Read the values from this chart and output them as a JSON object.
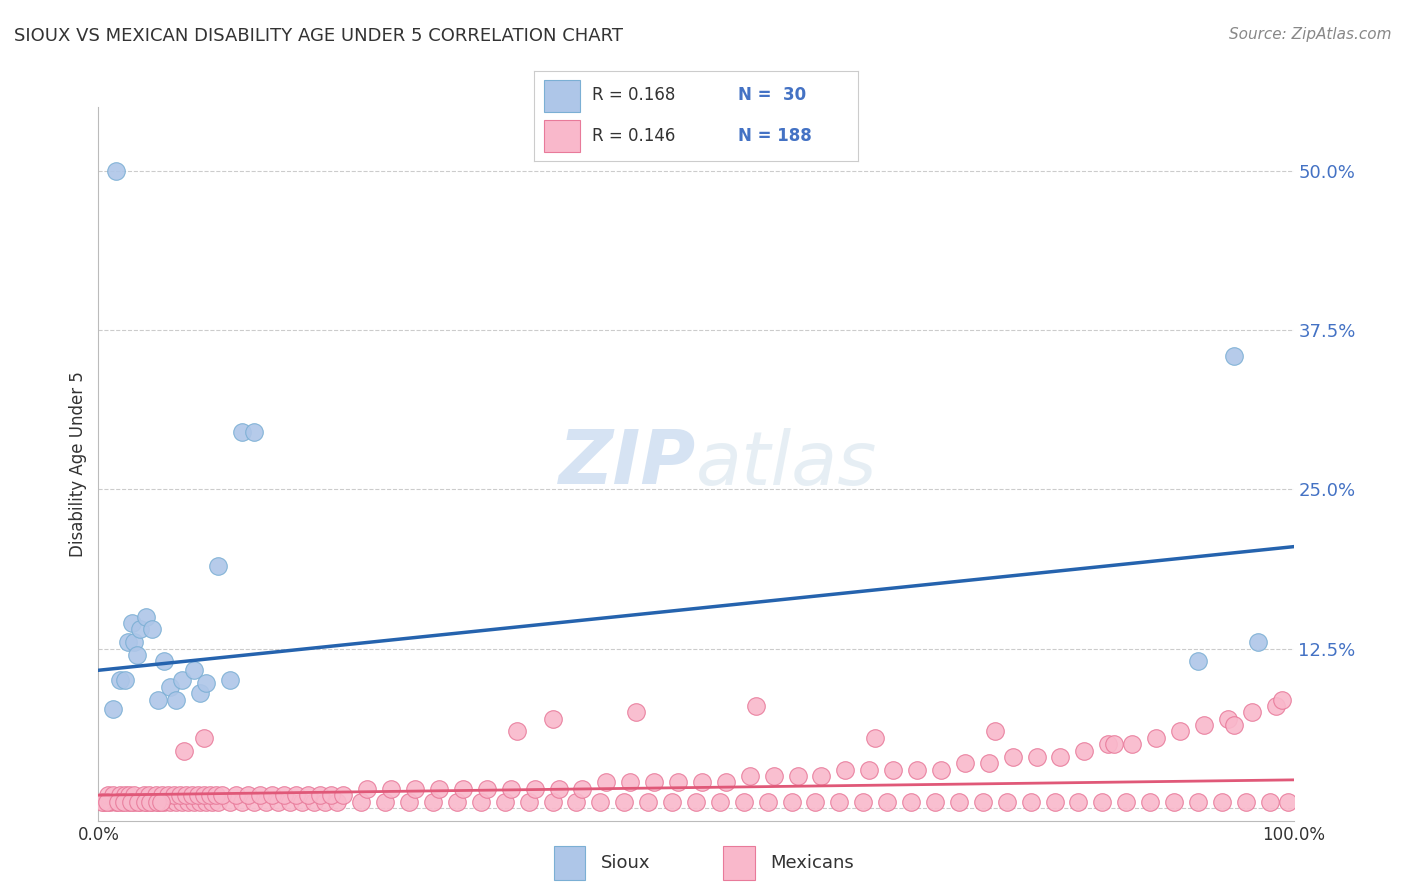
{
  "title": "SIOUX VS MEXICAN DISABILITY AGE UNDER 5 CORRELATION CHART",
  "source": "Source: ZipAtlas.com",
  "ylabel": "Disability Age Under 5",
  "sioux_color": "#aec6e8",
  "sioux_edge_color": "#7bafd4",
  "mexican_color": "#f9b8cb",
  "mexican_edge_color": "#e87a9a",
  "sioux_line_color": "#2563ae",
  "mexican_line_color": "#e05878",
  "ytick_color": "#4472c4",
  "title_color": "#333333",
  "watermark_color": "#dce8f0",
  "xlim": [
    0.0,
    1.0
  ],
  "ylim": [
    -0.01,
    0.55
  ],
  "yticks": [
    0.0,
    0.125,
    0.25,
    0.375,
    0.5
  ],
  "ytick_labels": [
    "",
    "12.5%",
    "25.0%",
    "37.5%",
    "50.0%"
  ],
  "sioux_line_x0": 0.0,
  "sioux_line_x1": 1.0,
  "sioux_line_y0": 0.108,
  "sioux_line_y1": 0.205,
  "mexican_line_x0": 0.0,
  "mexican_line_x1": 1.0,
  "mexican_line_y0": 0.01,
  "mexican_line_y1": 0.022,
  "sioux_scatter_x": [
    0.012,
    0.018,
    0.022,
    0.025,
    0.028,
    0.03,
    0.032,
    0.035,
    0.04,
    0.045,
    0.05,
    0.055,
    0.06,
    0.065,
    0.07,
    0.08,
    0.085,
    0.09,
    0.1,
    0.11,
    0.12,
    0.13,
    0.015,
    0.95,
    0.92,
    0.97
  ],
  "sioux_scatter_y": [
    0.078,
    0.1,
    0.1,
    0.13,
    0.145,
    0.13,
    0.12,
    0.14,
    0.15,
    0.14,
    0.085,
    0.115,
    0.095,
    0.085,
    0.1,
    0.108,
    0.09,
    0.098,
    0.19,
    0.1,
    0.295,
    0.295,
    0.5,
    0.355,
    0.115,
    0.13
  ],
  "mexican_scatter_x": [
    0.005,
    0.01,
    0.015,
    0.02,
    0.025,
    0.03,
    0.035,
    0.04,
    0.045,
    0.05,
    0.055,
    0.06,
    0.065,
    0.07,
    0.075,
    0.08,
    0.085,
    0.09,
    0.095,
    0.1,
    0.11,
    0.12,
    0.13,
    0.14,
    0.15,
    0.16,
    0.17,
    0.18,
    0.19,
    0.2,
    0.22,
    0.24,
    0.26,
    0.28,
    0.3,
    0.32,
    0.34,
    0.36,
    0.38,
    0.4,
    0.42,
    0.44,
    0.46,
    0.48,
    0.5,
    0.52,
    0.54,
    0.56,
    0.58,
    0.6,
    0.62,
    0.64,
    0.66,
    0.68,
    0.7,
    0.72,
    0.74,
    0.76,
    0.78,
    0.8,
    0.82,
    0.84,
    0.86,
    0.88,
    0.9,
    0.92,
    0.94,
    0.96,
    0.98,
    0.995,
    0.008,
    0.012,
    0.018,
    0.022,
    0.026,
    0.03,
    0.038,
    0.042,
    0.048,
    0.053,
    0.058,
    0.063,
    0.068,
    0.073,
    0.078,
    0.083,
    0.088,
    0.093,
    0.098,
    0.103,
    0.115,
    0.125,
    0.135,
    0.145,
    0.155,
    0.165,
    0.175,
    0.185,
    0.195,
    0.205,
    0.225,
    0.245,
    0.265,
    0.285,
    0.305,
    0.325,
    0.345,
    0.365,
    0.385,
    0.405,
    0.425,
    0.445,
    0.465,
    0.485,
    0.505,
    0.525,
    0.545,
    0.565,
    0.585,
    0.605,
    0.625,
    0.645,
    0.665,
    0.685,
    0.705,
    0.725,
    0.745,
    0.765,
    0.785,
    0.805,
    0.825,
    0.845,
    0.865,
    0.885,
    0.905,
    0.925,
    0.945,
    0.965,
    0.985,
    0.99,
    0.35,
    0.45,
    0.55,
    0.072,
    0.088,
    0.38,
    0.65,
    0.75,
    0.85,
    0.95,
    0.003,
    0.007,
    0.016,
    0.021,
    0.027,
    0.033,
    0.039,
    0.043,
    0.049,
    0.052
  ],
  "mexican_scatter_y": [
    0.005,
    0.005,
    0.005,
    0.005,
    0.005,
    0.005,
    0.005,
    0.005,
    0.005,
    0.005,
    0.005,
    0.005,
    0.005,
    0.005,
    0.005,
    0.005,
    0.005,
    0.005,
    0.005,
    0.005,
    0.005,
    0.005,
    0.005,
    0.005,
    0.005,
    0.005,
    0.005,
    0.005,
    0.005,
    0.005,
    0.005,
    0.005,
    0.005,
    0.005,
    0.005,
    0.005,
    0.005,
    0.005,
    0.005,
    0.005,
    0.005,
    0.005,
    0.005,
    0.005,
    0.005,
    0.005,
    0.005,
    0.005,
    0.005,
    0.005,
    0.005,
    0.005,
    0.005,
    0.005,
    0.005,
    0.005,
    0.005,
    0.005,
    0.005,
    0.005,
    0.005,
    0.005,
    0.005,
    0.005,
    0.005,
    0.005,
    0.005,
    0.005,
    0.005,
    0.005,
    0.01,
    0.01,
    0.01,
    0.01,
    0.01,
    0.01,
    0.01,
    0.01,
    0.01,
    0.01,
    0.01,
    0.01,
    0.01,
    0.01,
    0.01,
    0.01,
    0.01,
    0.01,
    0.01,
    0.01,
    0.01,
    0.01,
    0.01,
    0.01,
    0.01,
    0.01,
    0.01,
    0.01,
    0.01,
    0.01,
    0.015,
    0.015,
    0.015,
    0.015,
    0.015,
    0.015,
    0.015,
    0.015,
    0.015,
    0.015,
    0.02,
    0.02,
    0.02,
    0.02,
    0.02,
    0.02,
    0.025,
    0.025,
    0.025,
    0.025,
    0.03,
    0.03,
    0.03,
    0.03,
    0.03,
    0.035,
    0.035,
    0.04,
    0.04,
    0.04,
    0.045,
    0.05,
    0.05,
    0.055,
    0.06,
    0.065,
    0.07,
    0.075,
    0.08,
    0.085,
    0.06,
    0.075,
    0.08,
    0.045,
    0.055,
    0.07,
    0.055,
    0.06,
    0.05,
    0.065,
    0.005,
    0.005,
    0.005,
    0.005,
    0.005,
    0.005,
    0.005,
    0.005,
    0.005,
    0.005
  ]
}
